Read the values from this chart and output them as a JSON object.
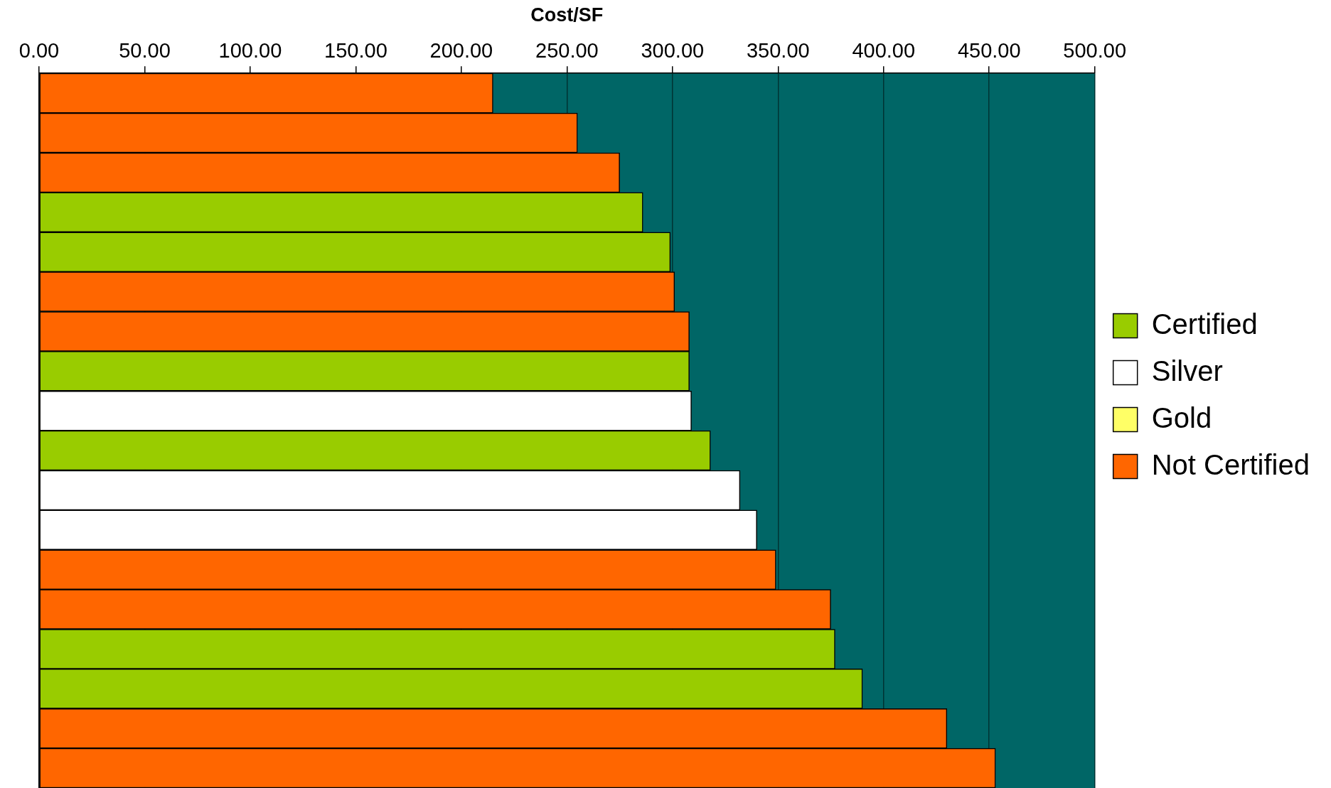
{
  "chart_data": {
    "type": "bar",
    "orientation": "horizontal",
    "stacked": true,
    "xlabel": "Cost/SF",
    "categories": [
      null,
      null,
      null,
      null,
      null,
      null,
      null,
      null,
      null,
      null,
      null,
      null,
      null,
      null,
      null,
      null,
      null,
      null
    ],
    "series": [
      {
        "name": "Certified",
        "color": "#99cc00",
        "values": [
          null,
          null,
          null,
          286,
          299,
          null,
          null,
          308,
          null,
          318,
          null,
          null,
          null,
          null,
          377,
          390,
          null,
          null
        ]
      },
      {
        "name": "Silver",
        "color": "#ffffff",
        "values": [
          null,
          null,
          null,
          null,
          null,
          null,
          null,
          null,
          309,
          null,
          332,
          340,
          null,
          null,
          null,
          null,
          null,
          null
        ]
      },
      {
        "name": "Gold",
        "color": "#ffff66",
        "values": [
          null,
          null,
          null,
          null,
          null,
          null,
          null,
          null,
          null,
          null,
          null,
          null,
          null,
          null,
          null,
          null,
          null,
          null
        ]
      },
      {
        "name": "Not Certified",
        "color": "#ff6600",
        "values": [
          215,
          255,
          275,
          null,
          null,
          301,
          308,
          null,
          null,
          null,
          null,
          null,
          349,
          375,
          null,
          null,
          430,
          453
        ]
      }
    ],
    "xlim": [
      0,
      500
    ],
    "xticks": [
      {
        "value": 0,
        "label": "0.00"
      },
      {
        "value": 50,
        "label": "50.00"
      },
      {
        "value": 100,
        "label": "100.00"
      },
      {
        "value": 150,
        "label": "150.00"
      },
      {
        "value": 200,
        "label": "200.00"
      },
      {
        "value": 250,
        "label": "250.00"
      },
      {
        "value": 300,
        "label": "300.00"
      },
      {
        "value": 350,
        "label": "350.00"
      },
      {
        "value": 400,
        "label": "400.00"
      },
      {
        "value": 450,
        "label": "450.00"
      },
      {
        "value": 500,
        "label": "500.00"
      }
    ],
    "grid": "x",
    "legend": "right"
  }
}
